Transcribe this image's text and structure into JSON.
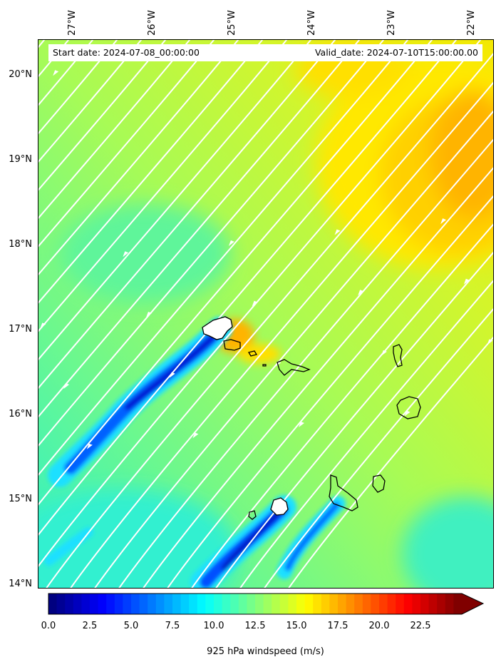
{
  "header": {
    "start_date": "Start date: 2024-07-08_00:00:00",
    "valid_date": "Valid_date: 2024-07-10T15:00:00.00"
  },
  "axes": {
    "lat_labels": [
      "20°N",
      "19°N",
      "18°N",
      "17°N",
      "16°N",
      "15°N",
      "14°N"
    ],
    "lon_labels": [
      "27°W",
      "26°W",
      "25°W",
      "24°W",
      "23°W",
      "22°W"
    ]
  },
  "colorbar": {
    "label": "925 hPa windspeed (m/s)",
    "ticks": [
      "0.0",
      "2.5",
      "5.0",
      "7.5",
      "10.0",
      "12.5",
      "15.0",
      "17.5",
      "20.0",
      "22.5"
    ],
    "min": 0,
    "max": 25,
    "extend": "max"
  },
  "map": {
    "variable": "925 hPa windspeed",
    "units": "m/s",
    "flow_direction": "northeast-to-southwest",
    "coastline_color": "#000000",
    "streamline_color": "#ffffff"
  }
}
